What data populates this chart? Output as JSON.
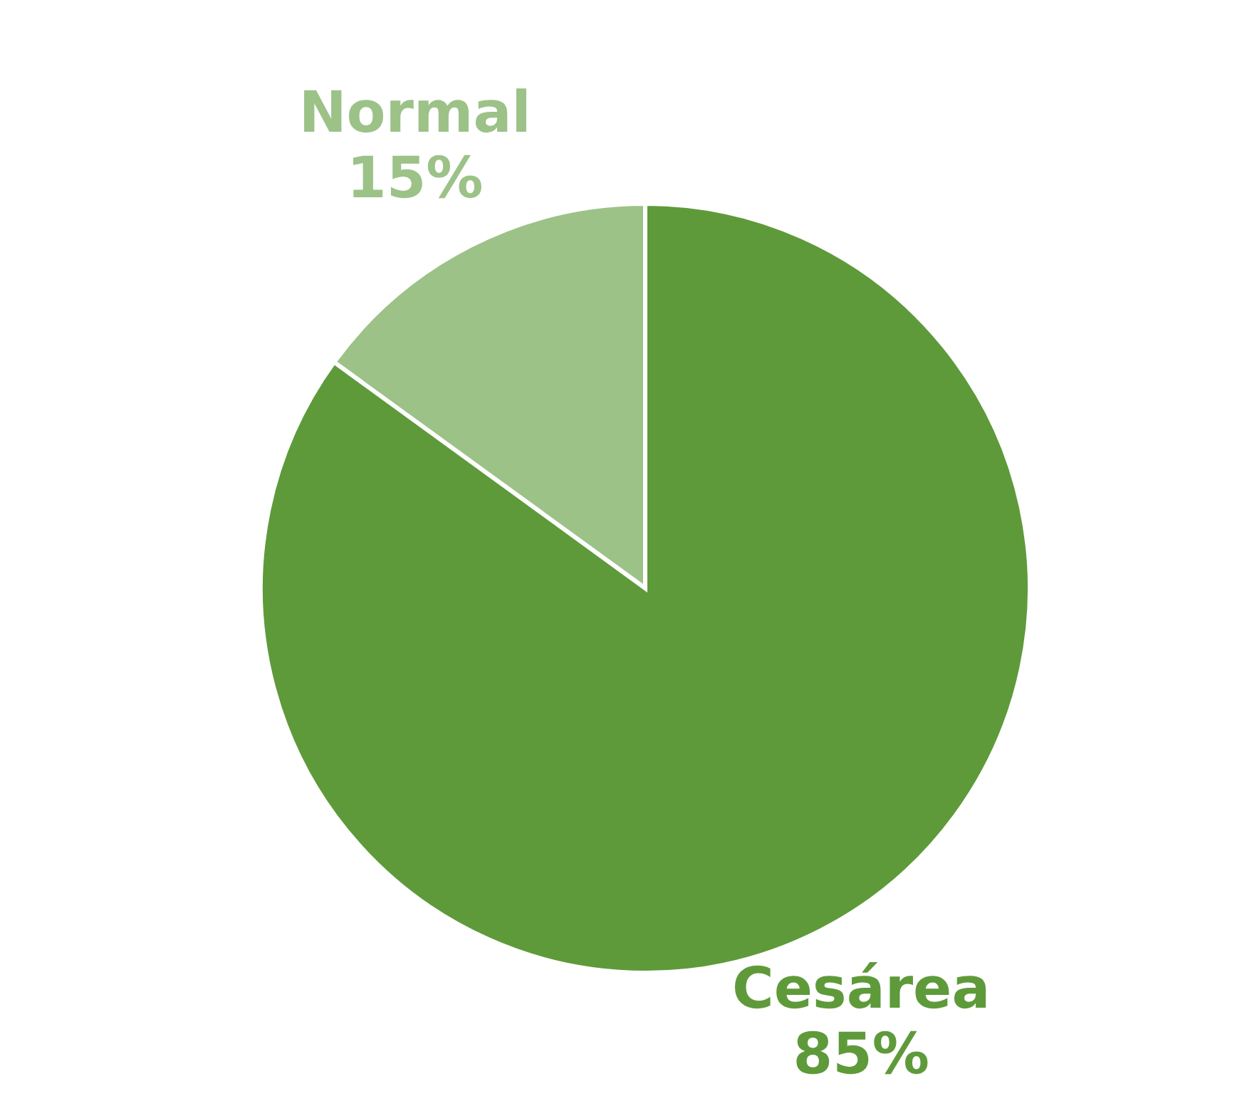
{
  "chart_data": {
    "type": "pie",
    "categories": [
      "Normal",
      "Cesárea"
    ],
    "values": [
      15,
      85
    ],
    "colors": [
      "#9cc288",
      "#5e9a3a"
    ],
    "value_labels": [
      "15%",
      "85%"
    ]
  }
}
